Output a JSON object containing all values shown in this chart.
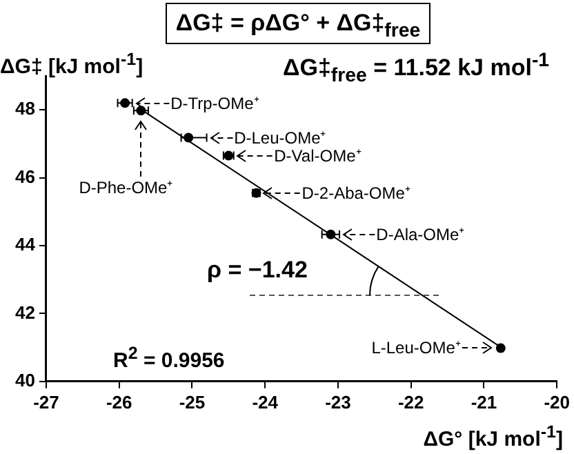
{
  "chart_data": {
    "type": "scatter",
    "title": "ΔG‡ = ρΔG° + ΔG‡$_{free}$",
    "xlabel": "ΔG° [kJ mol$^{-1}$]",
    "ylabel": "ΔG‡ [kJ mol$^{-1}$]",
    "xlim": [
      -27,
      -20
    ],
    "xticks": [
      -27,
      -26,
      -25,
      -24,
      -23,
      -22,
      -21,
      -20
    ],
    "ylim": [
      40,
      49
    ],
    "yticks": [
      40,
      42,
      44,
      46,
      48
    ],
    "marker": "circle",
    "series": [
      {
        "type": "scatter",
        "color": "#000000",
        "x": [
          -25.92,
          -25.7,
          -25.05,
          -24.5,
          -24.12,
          -23.1,
          -20.77
        ],
        "values": [
          48.2,
          47.98,
          47.18,
          46.65,
          45.55,
          44.33,
          40.98
        ],
        "xerrors": [
          0.1,
          0.1,
          [
            -25.15,
            -24.8
          ],
          0.07,
          0.05,
          0.12,
          0.03
        ]
      },
      {
        "type": "line",
        "marker": "none",
        "color": "#000000",
        "x": [
          -25.7,
          -20.77
        ],
        "values": [
          48.01,
          41.01
        ]
      }
    ],
    "annotations": [
      "ΔG‡$_{free}$ = 11.52 kJ mol$^{-1}$",
      "R$^{2}$ = 0.9956",
      "ρ = −1.42",
      {
        "text": "D-Trp-OMe⁺",
        "x": -25.92,
        "y": 48.2
      },
      {
        "text": "D-Phe-OMe⁺",
        "x": -25.7,
        "y": 47.98
      },
      {
        "text": "D-Leu-OMe⁺",
        "x": -25.05,
        "y": 47.18
      },
      {
        "text": "D-Val-OMe⁺",
        "x": -24.5,
        "y": 46.65
      },
      {
        "text": "D-2-Aba-OMe⁺",
        "x": -24.12,
        "y": 45.55
      },
      {
        "text": "D-Ala-OMe⁺",
        "x": -23.1,
        "y": 44.33
      },
      {
        "text": "L-Leu-OMe⁺",
        "x": -20.77,
        "y": 40.98
      }
    ]
  }
}
